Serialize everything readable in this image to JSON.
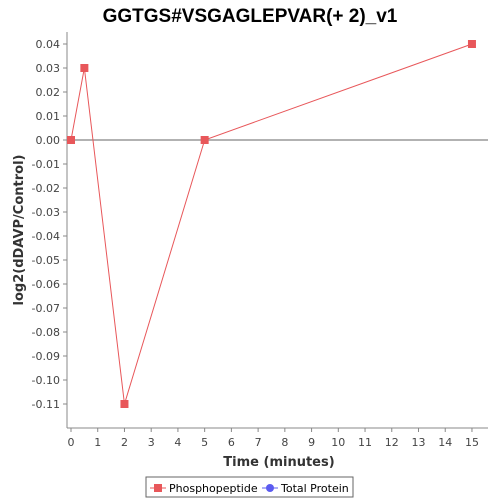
{
  "chart_data": {
    "type": "line",
    "title": "GGTGS#VSGAGLEPVAR(+ 2)_v1",
    "xlabel": "Time (minutes)",
    "ylabel": "log2(dDAVP/Control)",
    "x_ticks": [
      "0",
      "1",
      "2",
      "3",
      "4",
      "5",
      "6",
      "7",
      "8",
      "9",
      "10",
      "11",
      "12",
      "13",
      "14",
      "15"
    ],
    "y_ticks": [
      "0.04",
      "0.03",
      "0.02",
      "0.01",
      "0.00",
      "-0.01",
      "-0.02",
      "-0.03",
      "-0.04",
      "-0.05",
      "-0.06",
      "-0.07",
      "-0.08",
      "-0.09",
      "-0.10",
      "-0.11"
    ],
    "xlim": [
      0,
      15.6
    ],
    "ylim": [
      -0.12,
      0.045
    ],
    "grid": false,
    "zero_line": true,
    "legend_position": "bottom",
    "series": [
      {
        "name": "Phosphopeptide",
        "color": "#e8575a",
        "marker": "square",
        "x": [
          0,
          0.5,
          2,
          5,
          15
        ],
        "y": [
          0.0,
          0.03,
          -0.11,
          0.0,
          0.04
        ]
      },
      {
        "name": "Total Protein",
        "color": "#5b5bf0",
        "marker": "circle",
        "x": [],
        "y": []
      }
    ]
  }
}
